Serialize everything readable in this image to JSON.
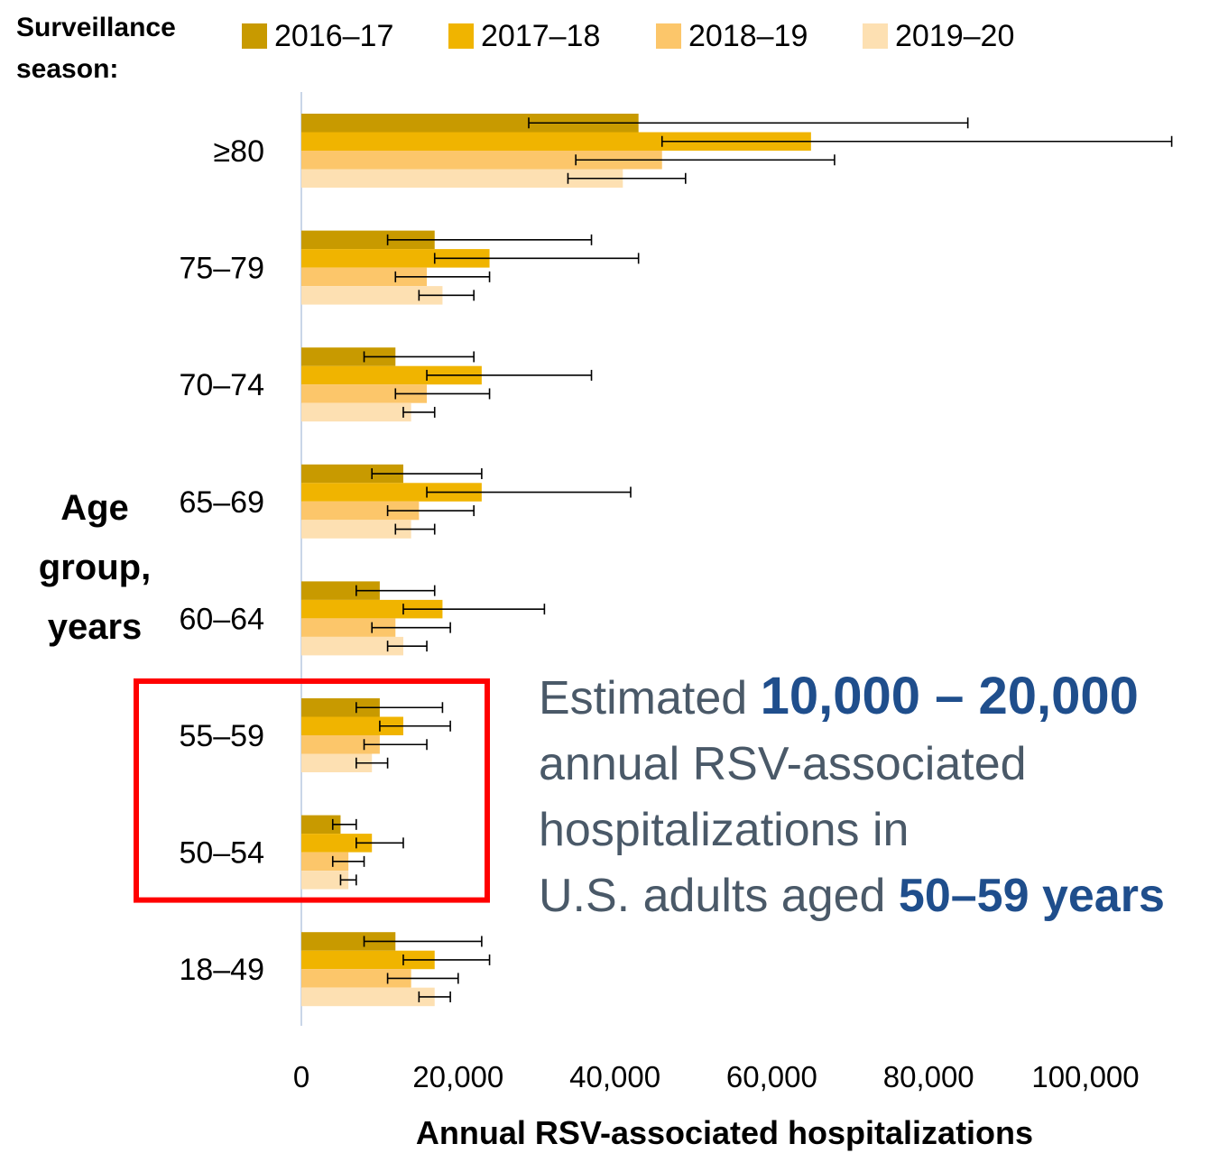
{
  "legend": {
    "title_line1": "Surveillance",
    "title_line2": "season:"
  },
  "y_axis_title": {
    "line1": "Age",
    "line2": "group,",
    "line3": "years"
  },
  "callout": {
    "text1": "Estimated ",
    "range": "10,000 – 20,000",
    "text2": "annual RSV-associated",
    "text3": "hospitalizations in",
    "text4": "U.S. adults aged ",
    "age_range": "50–59 years"
  },
  "colors": {
    "2016–17": "#c89a00",
    "2017–18": "#f0b400",
    "2018–19": "#fcc66a",
    "2019–20": "#fde0b2",
    "highlight_box": "#ff0000",
    "callout_text": "#4a5968",
    "callout_highlight": "#1f4e8c"
  },
  "chart_data": {
    "type": "bar",
    "orientation": "horizontal",
    "xlabel": "Annual RSV-associated hospitalizations",
    "ylabel": "Age group, years",
    "xlim": [
      0,
      100000
    ],
    "xticks": [
      0,
      20000,
      40000,
      60000,
      80000,
      100000
    ],
    "xtick_labels": [
      "0",
      "20,000",
      "40,000",
      "60,000",
      "80,000",
      "100,000"
    ],
    "grid": false,
    "legend_position": "top",
    "categories": [
      "≥80",
      "75–79",
      "70–74",
      "65–69",
      "60–64",
      "55–59",
      "50–54",
      "18–49"
    ],
    "highlighted_categories": [
      "55–59",
      "50–54"
    ],
    "series": [
      {
        "name": "2016–17",
        "values": [
          43000,
          17000,
          12000,
          13000,
          10000,
          10000,
          5000,
          12000
        ],
        "lower": [
          29000,
          11000,
          8000,
          9000,
          7000,
          7000,
          4000,
          8000
        ],
        "upper": [
          85000,
          37000,
          22000,
          23000,
          17000,
          18000,
          7000,
          23000
        ]
      },
      {
        "name": "2017–18",
        "values": [
          65000,
          24000,
          23000,
          23000,
          18000,
          13000,
          9000,
          17000
        ],
        "lower": [
          46000,
          17000,
          16000,
          16000,
          13000,
          10000,
          7000,
          13000
        ],
        "upper": [
          111000,
          43000,
          37000,
          42000,
          31000,
          19000,
          13000,
          24000
        ]
      },
      {
        "name": "2018–19",
        "values": [
          46000,
          16000,
          16000,
          15000,
          12000,
          10000,
          6000,
          14000
        ],
        "lower": [
          35000,
          12000,
          12000,
          11000,
          9000,
          8000,
          4000,
          11000
        ],
        "upper": [
          68000,
          24000,
          24000,
          22000,
          19000,
          16000,
          8000,
          20000
        ]
      },
      {
        "name": "2019–20",
        "values": [
          41000,
          18000,
          14000,
          14000,
          13000,
          9000,
          6000,
          17000
        ],
        "lower": [
          34000,
          15000,
          13000,
          12000,
          11000,
          7000,
          5000,
          15000
        ],
        "upper": [
          49000,
          22000,
          17000,
          17000,
          16000,
          11000,
          7000,
          19000
        ]
      }
    ]
  }
}
